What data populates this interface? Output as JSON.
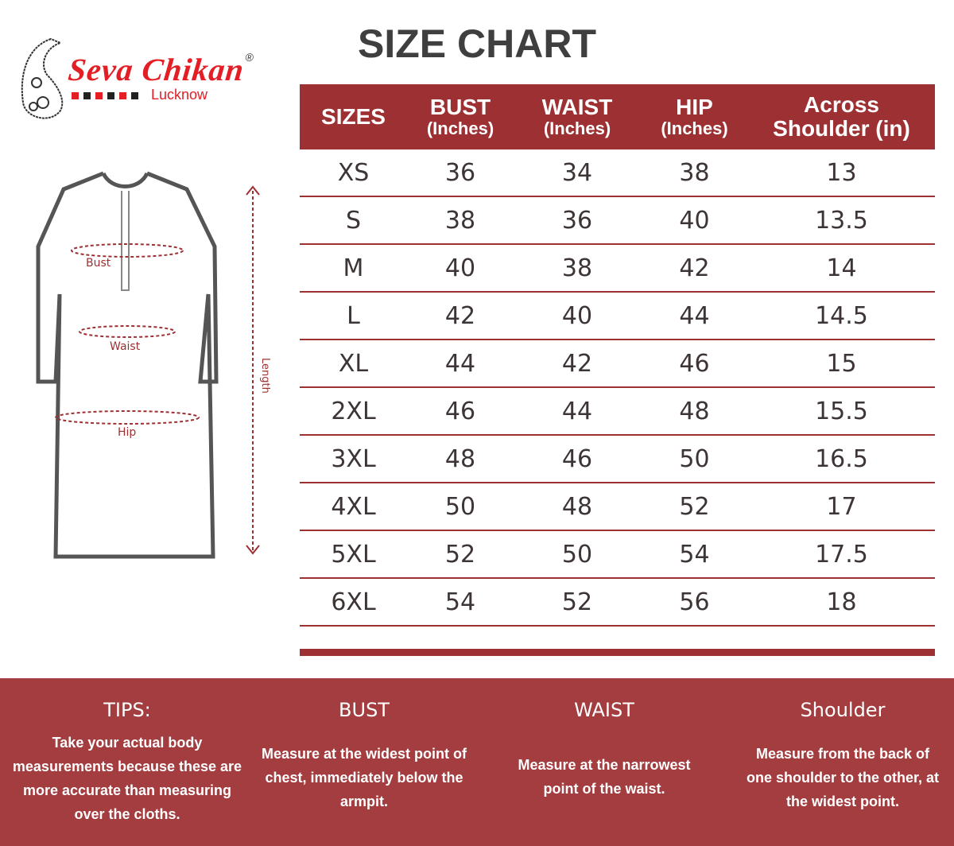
{
  "brand": {
    "name": "Seva Chikan",
    "registered": "®",
    "city": "Lucknow",
    "colors": {
      "red": "#e31e24",
      "dark": "#222222"
    }
  },
  "title": "SIZE CHART",
  "figure": {
    "labels": {
      "bust": "Bust",
      "waist": "Waist",
      "hip": "Hip",
      "length": "Length"
    }
  },
  "table": {
    "headers": [
      {
        "main": "SIZES",
        "sub": ""
      },
      {
        "main": "BUST",
        "sub": "(Inches)"
      },
      {
        "main": "WAIST",
        "sub": "(Inches)"
      },
      {
        "main": "HIP",
        "sub": "(Inches)"
      },
      {
        "main": "Across",
        "sub": "Shoulder (in)"
      }
    ],
    "rows": [
      [
        "XS",
        "36",
        "34",
        "38",
        "13"
      ],
      [
        "S",
        "38",
        "36",
        "40",
        "13.5"
      ],
      [
        "M",
        "40",
        "38",
        "42",
        "14"
      ],
      [
        "L",
        "42",
        "40",
        "44",
        "14.5"
      ],
      [
        "XL",
        "44",
        "42",
        "46",
        "15"
      ],
      [
        "2XL",
        "46",
        "44",
        "48",
        "15.5"
      ],
      [
        "3XL",
        "48",
        "46",
        "50",
        "16.5"
      ],
      [
        "4XL",
        "50",
        "48",
        "52",
        "17"
      ],
      [
        "5XL",
        "52",
        "50",
        "54",
        "17.5"
      ],
      [
        "6XL",
        "54",
        "52",
        "56",
        "18"
      ]
    ],
    "accent": "#9d3032"
  },
  "footer": {
    "columns": [
      {
        "title": "TIPS:",
        "text": "Take your actual body measurements because these are more accurate than measuring over the cloths."
      },
      {
        "title": "BUST",
        "text": "Measure at the widest point of chest, immediately below the armpit."
      },
      {
        "title": "WAIST",
        "text": "Measure at the narrowest point of the waist."
      },
      {
        "title": "Shoulder",
        "text": "Measure from the back of one shoulder to the other, at the widest point."
      }
    ]
  }
}
